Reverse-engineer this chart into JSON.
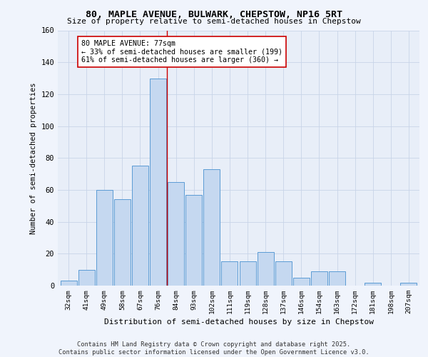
{
  "title1": "80, MAPLE AVENUE, BULWARK, CHEPSTOW, NP16 5RT",
  "title2": "Size of property relative to semi-detached houses in Chepstow",
  "xlabel": "Distribution of semi-detached houses by size in Chepstow",
  "ylabel": "Number of semi-detached properties",
  "categories": [
    "32sqm",
    "41sqm",
    "49sqm",
    "58sqm",
    "67sqm",
    "76sqm",
    "84sqm",
    "93sqm",
    "102sqm",
    "111sqm",
    "119sqm",
    "128sqm",
    "137sqm",
    "146sqm",
    "154sqm",
    "163sqm",
    "172sqm",
    "181sqm",
    "198sqm",
    "207sqm"
  ],
  "values": [
    3,
    10,
    60,
    54,
    75,
    130,
    65,
    57,
    73,
    15,
    15,
    21,
    15,
    5,
    9,
    9,
    0,
    2,
    0,
    2
  ],
  "bar_color": "#c5d8f0",
  "bar_edge_color": "#5b9bd5",
  "vline_x": 5.5,
  "vline_color": "#cc0000",
  "annotation_text": "80 MAPLE AVENUE: 77sqm\n← 33% of semi-detached houses are smaller (199)\n61% of semi-detached houses are larger (360) →",
  "annotation_box_color": "#ffffff",
  "annotation_box_edge": "#cc0000",
  "ylim": [
    0,
    160
  ],
  "yticks": [
    0,
    20,
    40,
    60,
    80,
    100,
    120,
    140,
    160
  ],
  "footer": "Contains HM Land Registry data © Crown copyright and database right 2025.\nContains public sector information licensed under the Open Government Licence v3.0.",
  "fig_bg_color": "#f0f4fc",
  "plot_bg_color": "#e8eef8"
}
